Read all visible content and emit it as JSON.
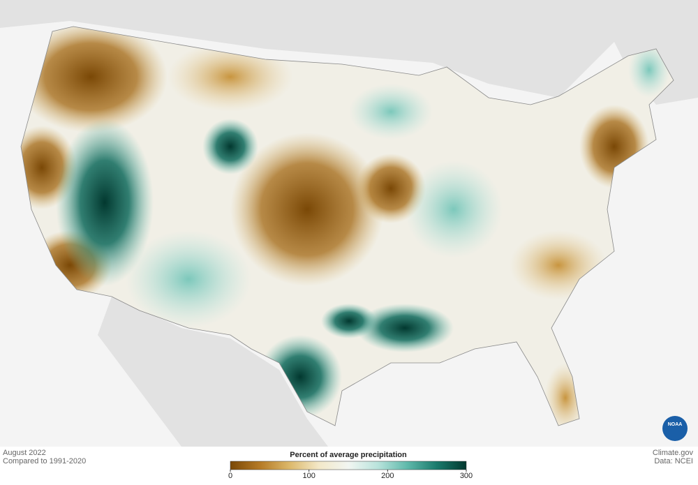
{
  "caption": {
    "period": "August 2022",
    "baseline": "Compared to 1991-2020"
  },
  "credit": {
    "site": "Climate.gov",
    "source": "Data: NCEI",
    "logo": "NOAA"
  },
  "legend": {
    "title": "Percent of average precipitation",
    "range": [
      0,
      300
    ],
    "ticks": [
      0,
      100,
      200,
      300
    ],
    "colors": [
      "#7a4806",
      "#b57a26",
      "#dcb86a",
      "#f3e8c8",
      "#f2f6f2",
      "#b9e3dc",
      "#5fb9ab",
      "#1a7a6c",
      "#02382f"
    ]
  }
}
